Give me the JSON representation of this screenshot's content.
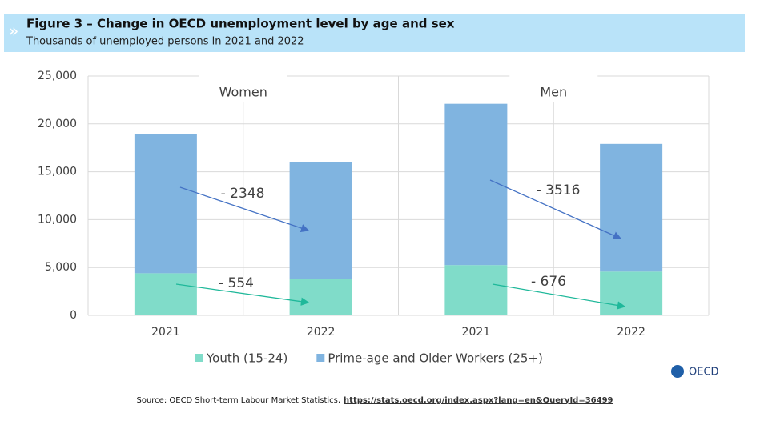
{
  "chart_data": {
    "type": "stacked-bar",
    "title": "Figure 3 – Change in OECD unemployment level by age and sex",
    "subtitle": "Thousands of unemployed persons in 2021 and 2022",
    "groups": [
      "Women",
      "Men"
    ],
    "categories": [
      "2021",
      "2022",
      "2021",
      "2022"
    ],
    "series": [
      {
        "name": "Youth (15-24)",
        "color": "#80dcc9",
        "values": [
          4400,
          3846,
          5250,
          4574
        ]
      },
      {
        "name": "Prime-age and Older Workers (25+)",
        "color": "#80b4e0",
        "values": [
          14500,
          12152,
          16850,
          13334
        ]
      }
    ],
    "annotations": [
      "- 2348",
      "- 554",
      "- 3516",
      "- 676"
    ],
    "ylim": [
      0,
      25000
    ],
    "yticks": [
      0,
      {
        "value": 5000,
        "label": "5,000"
      },
      {
        "value": 10000,
        "label": "10,000"
      },
      {
        "value": 15000,
        "label": "15,000"
      },
      {
        "value": 20000,
        "label": "20,000"
      },
      {
        "value": 25000,
        "label": "25,000"
      }
    ],
    "grid": true
  },
  "footer": {
    "source": "Source: OECD Short-term Labour Market Statistics,",
    "link": "https://stats.oecd.org/index.aspx?lang=en&QueryId=36499",
    "logo": "OECD"
  }
}
